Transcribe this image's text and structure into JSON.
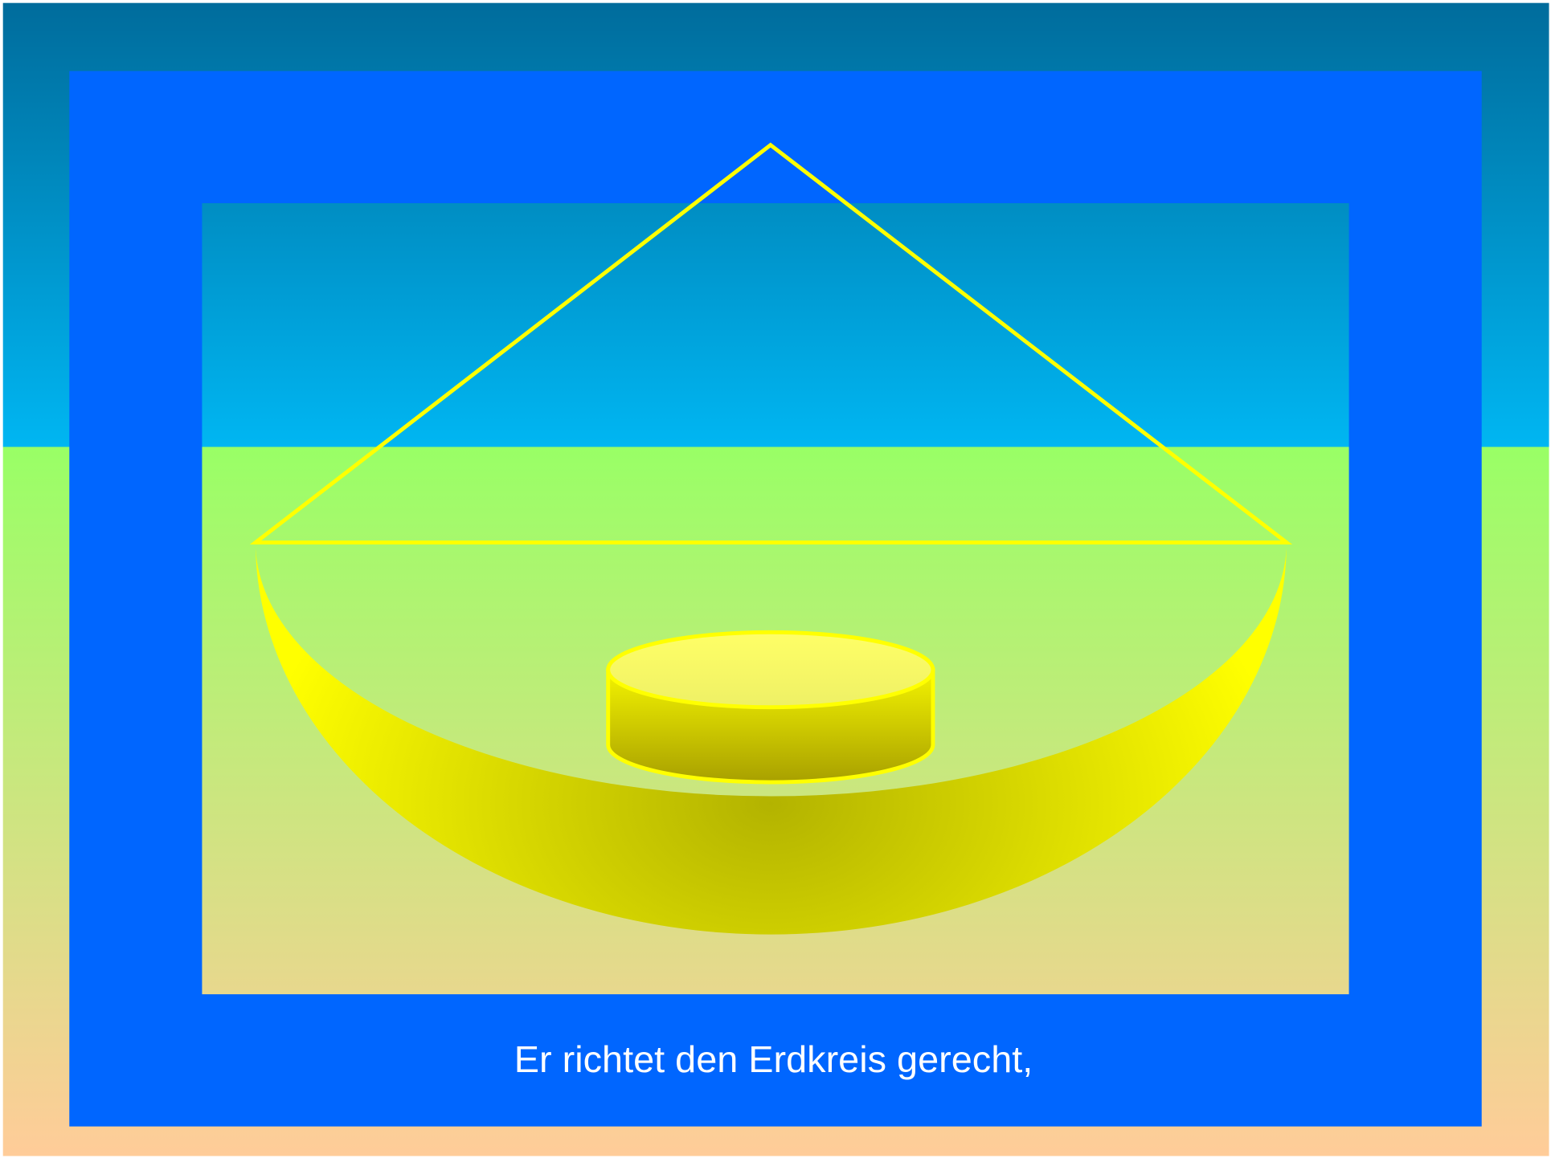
{
  "caption": "Er richtet den Erdkreis gerecht,"
}
